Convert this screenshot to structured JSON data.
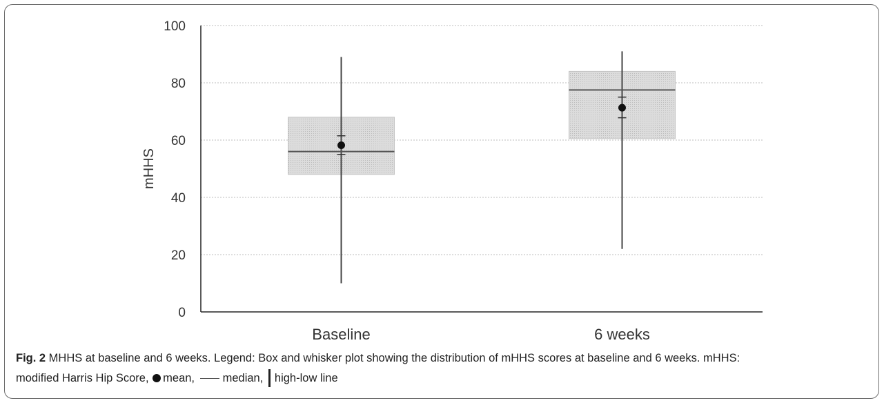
{
  "chart_data": {
    "type": "box",
    "ylabel": "mHHS",
    "xlabel": "",
    "ylim": [
      0,
      100
    ],
    "yticks": [
      0,
      20,
      40,
      60,
      80,
      100
    ],
    "grid": true,
    "categories": [
      "Baseline",
      "6 weeks"
    ],
    "boxes": [
      {
        "category": "Baseline",
        "low": 10,
        "q1": 48,
        "median": 56,
        "q3": 68,
        "high": 89,
        "mean": 58.2,
        "mean_err_low": 55,
        "mean_err_high": 61.5
      },
      {
        "category": "6 weeks",
        "low": 22,
        "q1": 60.5,
        "median": 77.5,
        "q3": 84,
        "high": 91,
        "mean": 71.3,
        "mean_err_low": 67.8,
        "mean_err_high": 75
      }
    ],
    "colors": {
      "box_fill": "#d2d2d2",
      "line": "#444444",
      "grid": "#bdbdbd",
      "mean": "#111111"
    }
  },
  "caption": {
    "fig_label": "Fig. 2",
    "text_1": " MHHS at baseline and 6 weeks. Legend: Box and whisker plot showing the distribution of mHHS scores at baseline and 6 weeks. mHHS:",
    "text_2": "modified Harris Hip Score, ",
    "legend_mean": "mean, ",
    "legend_median": "median, ",
    "legend_highlow": "high-low line"
  }
}
